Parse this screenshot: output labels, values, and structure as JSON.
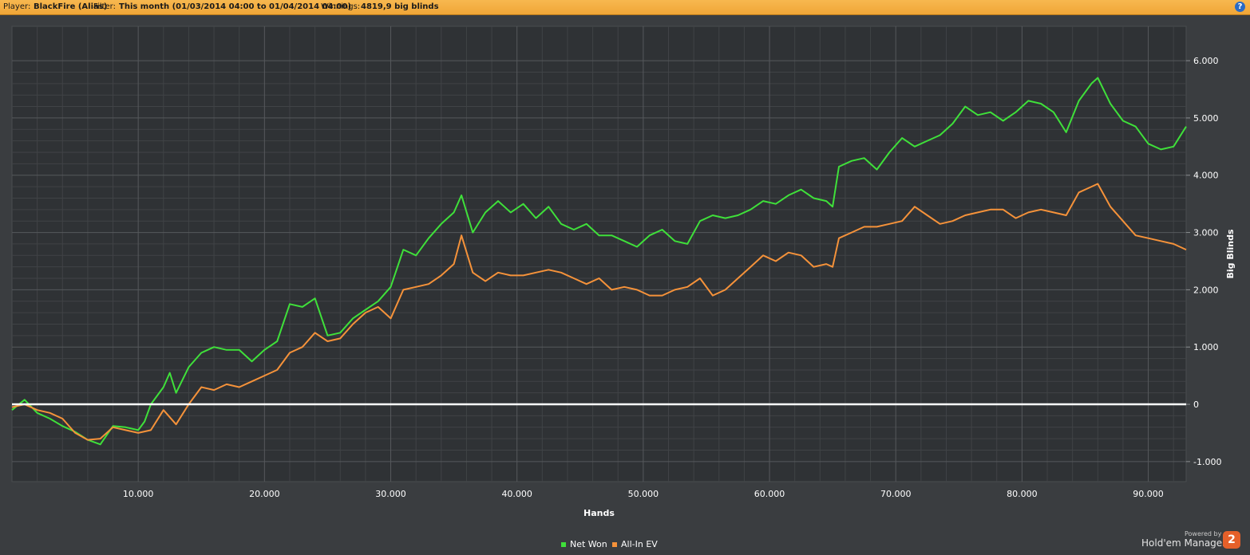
{
  "header": {
    "player_label": "Player:",
    "player_value": "BlackFire (Alias)",
    "filter_label": "Filter:",
    "filter_value": "This month (01/03/2014 04:00 to 01/04/2014 04:00)",
    "winnings_label": "Winnings:",
    "winnings_value": "4819,9 big blinds",
    "help_label": "?"
  },
  "brand": {
    "powered_by": "Powered by",
    "name": "Hold'em Manager",
    "logo_text": "2"
  },
  "colors": {
    "background": "#3a3d40",
    "header_bar": "#f4ad42",
    "net_won": "#3fe03a",
    "all_in_ev": "#f5923a",
    "zero_line": "#ffffff",
    "grid": "#56595c"
  },
  "chart_data": {
    "type": "line",
    "xlabel": "Hands",
    "ylabel": "Big Blinds",
    "xlim": [
      0,
      93000
    ],
    "ylim": [
      -1350,
      6600
    ],
    "x_ticks": [
      10000,
      20000,
      30000,
      40000,
      50000,
      60000,
      70000,
      80000,
      90000
    ],
    "x_tick_labels": [
      "10.000",
      "20.000",
      "30.000",
      "40.000",
      "50.000",
      "60.000",
      "70.000",
      "80.000",
      "90.000"
    ],
    "y_ticks": [
      -1000,
      0,
      1000,
      2000,
      3000,
      4000,
      5000,
      6000
    ],
    "y_tick_labels": [
      "-1.000",
      "0",
      "1.000",
      "2.000",
      "3.000",
      "4.000",
      "5.000",
      "6.000"
    ],
    "grid": true,
    "zero_line": true,
    "legend_position": "bottom-center",
    "series": [
      {
        "name": "Net Won",
        "color": "#3fe03a",
        "x": [
          0,
          1000,
          2000,
          3000,
          4000,
          5000,
          6000,
          7000,
          8000,
          9000,
          10000,
          10500,
          11000,
          12000,
          12500,
          13000,
          14000,
          15000,
          16000,
          17000,
          18000,
          19000,
          20000,
          21000,
          22000,
          23000,
          24000,
          25000,
          26000,
          27000,
          28000,
          29000,
          30000,
          31000,
          32000,
          33000,
          34000,
          35000,
          35600,
          36500,
          37500,
          38500,
          39500,
          40500,
          41500,
          42500,
          43500,
          44500,
          45500,
          46500,
          47500,
          48500,
          49500,
          50500,
          51500,
          52500,
          53500,
          54500,
          55500,
          56500,
          57500,
          58500,
          59500,
          60500,
          61500,
          62500,
          63500,
          64500,
          65000,
          65500,
          66500,
          67500,
          68500,
          69500,
          70500,
          71500,
          72500,
          73500,
          74500,
          75500,
          76500,
          77500,
          78500,
          79500,
          80500,
          81500,
          82500,
          83500,
          84500,
          85500,
          86000,
          87000,
          88000,
          89000,
          90000,
          91000,
          92000,
          93000
        ],
        "y": [
          -100,
          80,
          -150,
          -250,
          -380,
          -480,
          -620,
          -700,
          -380,
          -400,
          -450,
          -300,
          0,
          300,
          550,
          200,
          650,
          900,
          1000,
          950,
          950,
          750,
          950,
          1100,
          1750,
          1700,
          1850,
          1200,
          1250,
          1500,
          1650,
          1800,
          2050,
          2700,
          2600,
          2900,
          3150,
          3350,
          3650,
          3000,
          3350,
          3550,
          3350,
          3500,
          3250,
          3450,
          3150,
          3050,
          3150,
          2950,
          2950,
          2850,
          2750,
          2950,
          3050,
          2850,
          2800,
          3200,
          3300,
          3250,
          3300,
          3400,
          3550,
          3500,
          3650,
          3750,
          3600,
          3550,
          3450,
          4150,
          4250,
          4300,
          4100,
          4400,
          4650,
          4500,
          4600,
          4700,
          4900,
          5200,
          5050,
          5100,
          4950,
          5100,
          5300,
          5250,
          5100,
          4750,
          5300,
          5600,
          5700,
          5250,
          4950,
          4850,
          4550,
          4450,
          4500,
          4850
        ]
      },
      {
        "name": "All-In EV",
        "color": "#f5923a",
        "x": [
          0,
          1000,
          2000,
          3000,
          4000,
          5000,
          6000,
          7000,
          8000,
          9000,
          10000,
          11000,
          12000,
          13000,
          14000,
          15000,
          16000,
          17000,
          18000,
          19000,
          20000,
          21000,
          22000,
          23000,
          24000,
          25000,
          26000,
          27000,
          28000,
          29000,
          30000,
          31000,
          32000,
          33000,
          34000,
          35000,
          35600,
          36500,
          37500,
          38500,
          39500,
          40500,
          41500,
          42500,
          43500,
          44500,
          45500,
          46500,
          47500,
          48500,
          49500,
          50500,
          51500,
          52500,
          53500,
          54500,
          55500,
          56500,
          57500,
          58500,
          59500,
          60500,
          61500,
          62500,
          63500,
          64500,
          65000,
          65500,
          66500,
          67500,
          68500,
          69500,
          70500,
          71500,
          72500,
          73500,
          74500,
          75500,
          76500,
          77500,
          78500,
          79500,
          80500,
          81500,
          82500,
          83500,
          84500,
          85500,
          86000,
          87000,
          88000,
          89000,
          90000,
          91000,
          92000,
          93000
        ],
        "y": [
          -50,
          0,
          -100,
          -150,
          -250,
          -500,
          -620,
          -600,
          -400,
          -450,
          -500,
          -450,
          -100,
          -350,
          0,
          300,
          250,
          350,
          300,
          400,
          500,
          600,
          900,
          1000,
          1250,
          1100,
          1150,
          1400,
          1600,
          1700,
          1500,
          2000,
          2050,
          2100,
          2250,
          2450,
          2950,
          2300,
          2150,
          2300,
          2250,
          2250,
          2300,
          2350,
          2300,
          2200,
          2100,
          2200,
          2000,
          2050,
          2000,
          1900,
          1900,
          2000,
          2050,
          2200,
          1900,
          2000,
          2200,
          2400,
          2600,
          2500,
          2650,
          2600,
          2400,
          2450,
          2400,
          2900,
          3000,
          3100,
          3100,
          3150,
          3200,
          3450,
          3300,
          3150,
          3200,
          3300,
          3350,
          3400,
          3400,
          3250,
          3350,
          3400,
          3350,
          3300,
          3700,
          3800,
          3850,
          3450,
          3200,
          2950,
          2900,
          2850,
          2800,
          2700
        ]
      }
    ]
  }
}
